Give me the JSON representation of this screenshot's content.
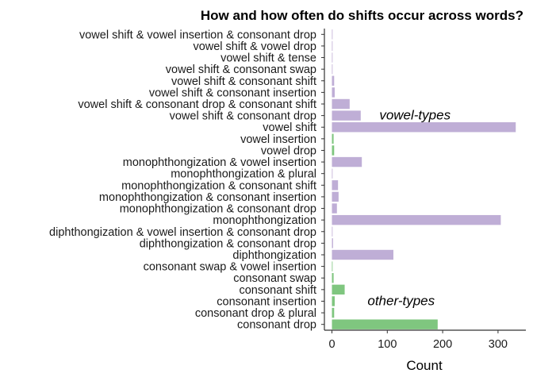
{
  "chart_data": {
    "type": "bar",
    "orientation": "horizontal",
    "title": "How and how often do shifts occur across words?",
    "xlabel": "Count",
    "ylabel": "",
    "xlim": [
      0,
      335
    ],
    "xticks": [
      0,
      100,
      200,
      300
    ],
    "grid": false,
    "legend": "none",
    "colors": {
      "vowel-types": "#bfaed6",
      "other-types": "#7fc67f",
      "axis": "#333333"
    },
    "categories": [
      "vowel shift & vowel insertion & consonant drop",
      "vowel shift & vowel drop",
      "vowel shift & tense",
      "vowel shift & consonant swap",
      "vowel shift & consonant shift",
      "vowel shift & consonant insertion",
      "vowel shift & consonant drop & consonant shift",
      "vowel shift & consonant drop",
      "vowel shift",
      "vowel insertion",
      "vowel drop",
      "monophthongization & vowel insertion",
      "monophthongization & plural",
      "monophthongization & consonant shift",
      "monophthongization & consonant insertion",
      "monophthongization & consonant drop",
      "monophthongization",
      "diphthongization & vowel insertion & consonant drop",
      "diphthongization & consonant drop",
      "diphthongization",
      "consonant swap & vowel insertion",
      "consonant swap",
      "consonant shift",
      "consonant insertion",
      "consonant drop & plural",
      "consonant drop"
    ],
    "values": [
      1,
      1,
      1,
      1,
      4,
      5,
      32,
      52,
      332,
      3,
      4,
      54,
      1,
      11,
      12,
      9,
      305,
      1,
      2,
      111,
      1,
      3,
      23,
      5,
      4,
      191
    ],
    "groups": [
      "vowel-types",
      "vowel-types",
      "vowel-types",
      "vowel-types",
      "vowel-types",
      "vowel-types",
      "vowel-types",
      "vowel-types",
      "vowel-types",
      "other-types",
      "other-types",
      "vowel-types",
      "vowel-types",
      "vowel-types",
      "vowel-types",
      "vowel-types",
      "vowel-types",
      "vowel-types",
      "vowel-types",
      "vowel-types",
      "other-types",
      "other-types",
      "other-types",
      "other-types",
      "other-types",
      "other-types"
    ],
    "annotations": [
      {
        "text": "vowel-types",
        "x": 150,
        "category": "vowel shift & consonant drop"
      },
      {
        "text": "other-types",
        "x": 125,
        "category": "consonant insertion"
      }
    ]
  }
}
